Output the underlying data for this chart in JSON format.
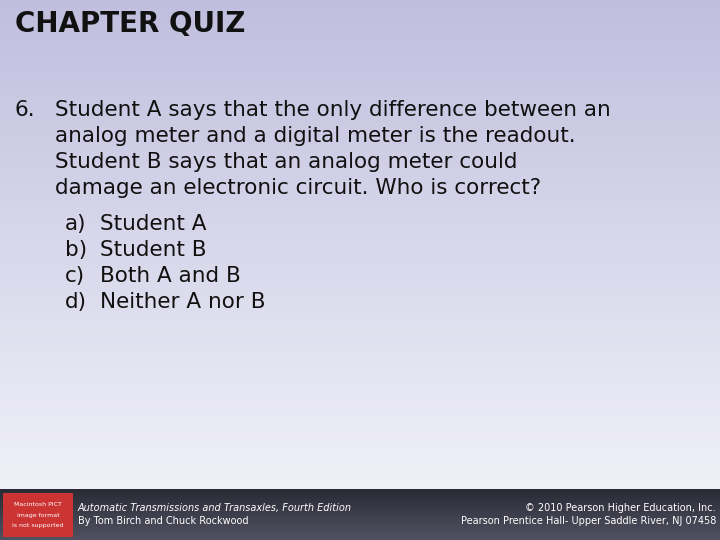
{
  "title": "CHAPTER QUIZ",
  "question_number": "6.",
  "question_lines": [
    "Student A says that the only difference between an",
    "analog meter and a digital meter is the readout.",
    "Student B says that an analog meter could",
    "damage an electronic circuit. Who is correct?"
  ],
  "options": [
    {
      "label": "a)",
      "text": "Student A"
    },
    {
      "label": "b)",
      "text": "Student B"
    },
    {
      "label": "c)",
      "text": "Both A and B"
    },
    {
      "label": "d)",
      "text": "Neither A nor B"
    }
  ],
  "bg_top_color": "#c0bedd",
  "bg_bottom_color": "#f0f0f8",
  "footer_bg_top": "#2a2a35",
  "footer_bg_bottom": "#505060",
  "footer_left_line1": "Automatic Transmissions and Transaxles, Fourth Edition",
  "footer_left_line2": "By Tom Birch and Chuck Rockwood",
  "footer_right_line1": "© 2010 Pearson Higher Education, Inc.",
  "footer_right_line2": "Pearson Prentice Hall- Upper Saddle River, NJ 07458",
  "logo_bg": "#cc3333",
  "logo_text_line1": "Macintosh PICT",
  "logo_text_line2": "image format",
  "logo_text_line3": "is not supported",
  "title_fontsize": 20,
  "question_fontsize": 15.5,
  "option_fontsize": 15.5,
  "footer_fontsize": 7.0
}
